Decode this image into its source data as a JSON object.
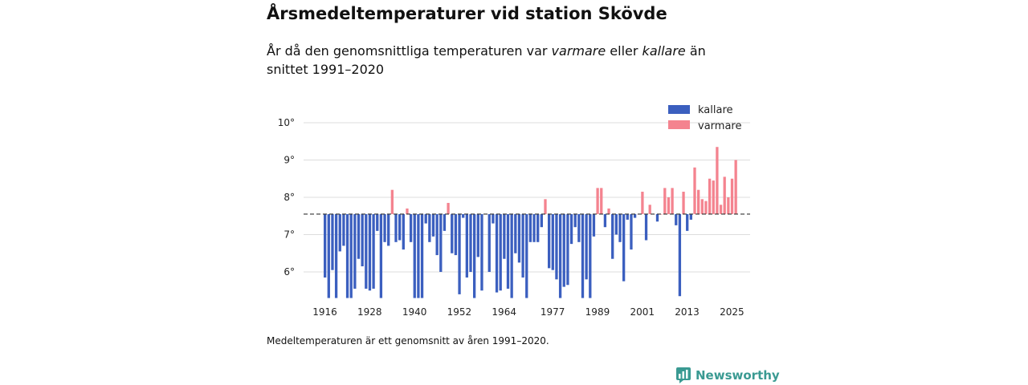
{
  "header": {
    "title": "Årsmedeltemperaturer vid station Skövde",
    "subtitle_pre": "År då den genomsnittliga temperaturen var ",
    "subtitle_warm": "varmare",
    "subtitle_mid": " eller ",
    "subtitle_cold": "kallare",
    "subtitle_post": " än snittet 1991–2020"
  },
  "note": "Medeltemperaturen är ett genomsnitt av åren 1991–2020.",
  "brand": {
    "name": "Newsworthy",
    "icon": "newsworthy-logo-icon"
  },
  "colors": {
    "colder": "#3b5fbf",
    "warmer": "#f4838f",
    "baseline": "#333333",
    "grid": "#dddddd",
    "brand": "#3a9a92"
  },
  "chart_data": {
    "type": "bar",
    "title": "Årsmedeltemperaturer vid station Skövde",
    "xlabel": "",
    "ylabel": "",
    "baseline": 7.55,
    "ylim": [
      5.2,
      10.3
    ],
    "yticks": [
      6,
      7,
      8,
      9,
      10
    ],
    "ytick_labels": [
      "6°",
      "7°",
      "8°",
      "9°",
      "10°"
    ],
    "xticks": [
      1916,
      1928,
      1940,
      1952,
      1964,
      1977,
      1989,
      2001,
      2013,
      2025
    ],
    "legend": [
      {
        "key": "colder",
        "label": "kallare"
      },
      {
        "key": "warmer",
        "label": "varmare"
      }
    ],
    "legend_position": "top-right",
    "start_year": 1916,
    "values": [
      5.85,
      5.3,
      6.05,
      5.3,
      6.55,
      6.7,
      5.3,
      5.3,
      5.55,
      6.35,
      6.15,
      5.55,
      5.5,
      5.55,
      7.1,
      5.3,
      6.8,
      6.7,
      8.2,
      6.8,
      6.85,
      6.6,
      7.7,
      6.8,
      5.3,
      5.3,
      5.3,
      7.3,
      6.8,
      6.95,
      6.45,
      6.0,
      7.1,
      7.85,
      6.5,
      6.45,
      5.4,
      7.45,
      5.85,
      6.0,
      5.3,
      6.4,
      5.5,
      7.55,
      6.0,
      7.3,
      5.45,
      5.5,
      6.35,
      5.55,
      5.3,
      6.5,
      6.25,
      5.85,
      5.3,
      6.8,
      6.8,
      6.8,
      7.2,
      7.95,
      6.1,
      6.05,
      5.8,
      5.3,
      5.6,
      5.65,
      6.75,
      7.2,
      6.8,
      5.3,
      5.8,
      5.3,
      6.95,
      8.25,
      8.25,
      7.2,
      7.7,
      6.35,
      7.0,
      6.8,
      5.75,
      7.4,
      6.6,
      7.45,
      7.55,
      8.15,
      6.85,
      7.8,
      7.55,
      7.35,
      7.55,
      8.25,
      8.0,
      8.25,
      7.25,
      5.35,
      8.15,
      7.1,
      7.4,
      8.8,
      8.2,
      7.95,
      7.9,
      8.5,
      8.45,
      9.35,
      7.8,
      8.55,
      8.0,
      8.5,
      9.0
    ]
  }
}
